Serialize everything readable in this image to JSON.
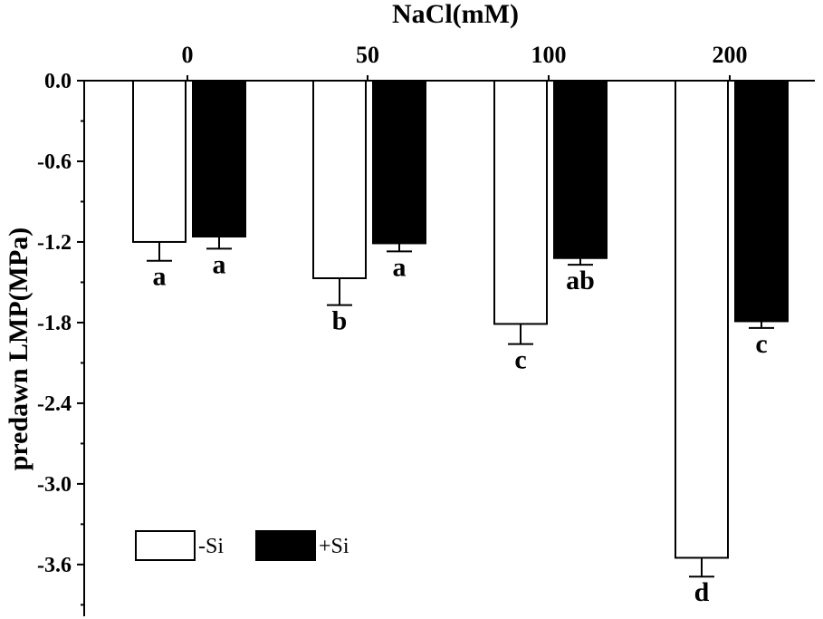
{
  "chart_data": {
    "type": "bar",
    "title": "NaCl(mM)",
    "xlabel": "NaCl(mM)",
    "ylabel": "predawn LMP(MPa)",
    "categories": [
      "0",
      "50",
      "100",
      "200"
    ],
    "series": [
      {
        "name": "-Si",
        "fill": "#ffffff",
        "values": [
          -1.2,
          -1.47,
          -1.81,
          -3.55
        ],
        "errors": [
          0.14,
          0.2,
          0.15,
          0.14
        ],
        "labels": [
          "a",
          "b",
          "c",
          "d"
        ]
      },
      {
        "name": "+Si",
        "fill": "#000000",
        "values": [
          -1.16,
          -1.21,
          -1.32,
          -1.79
        ],
        "errors": [
          0.09,
          0.06,
          0.05,
          0.05
        ],
        "labels": [
          "a",
          "a",
          "ab",
          "c"
        ]
      }
    ],
    "ylim": [
      -4.0,
      0.0
    ],
    "yticks": [
      "0.0",
      "-0.6",
      "-1.2",
      "-1.8",
      "-2.4",
      "-3.0",
      "-3.6"
    ],
    "x_axis_position": "top",
    "legend_position": "bottom-left",
    "grid": false
  }
}
